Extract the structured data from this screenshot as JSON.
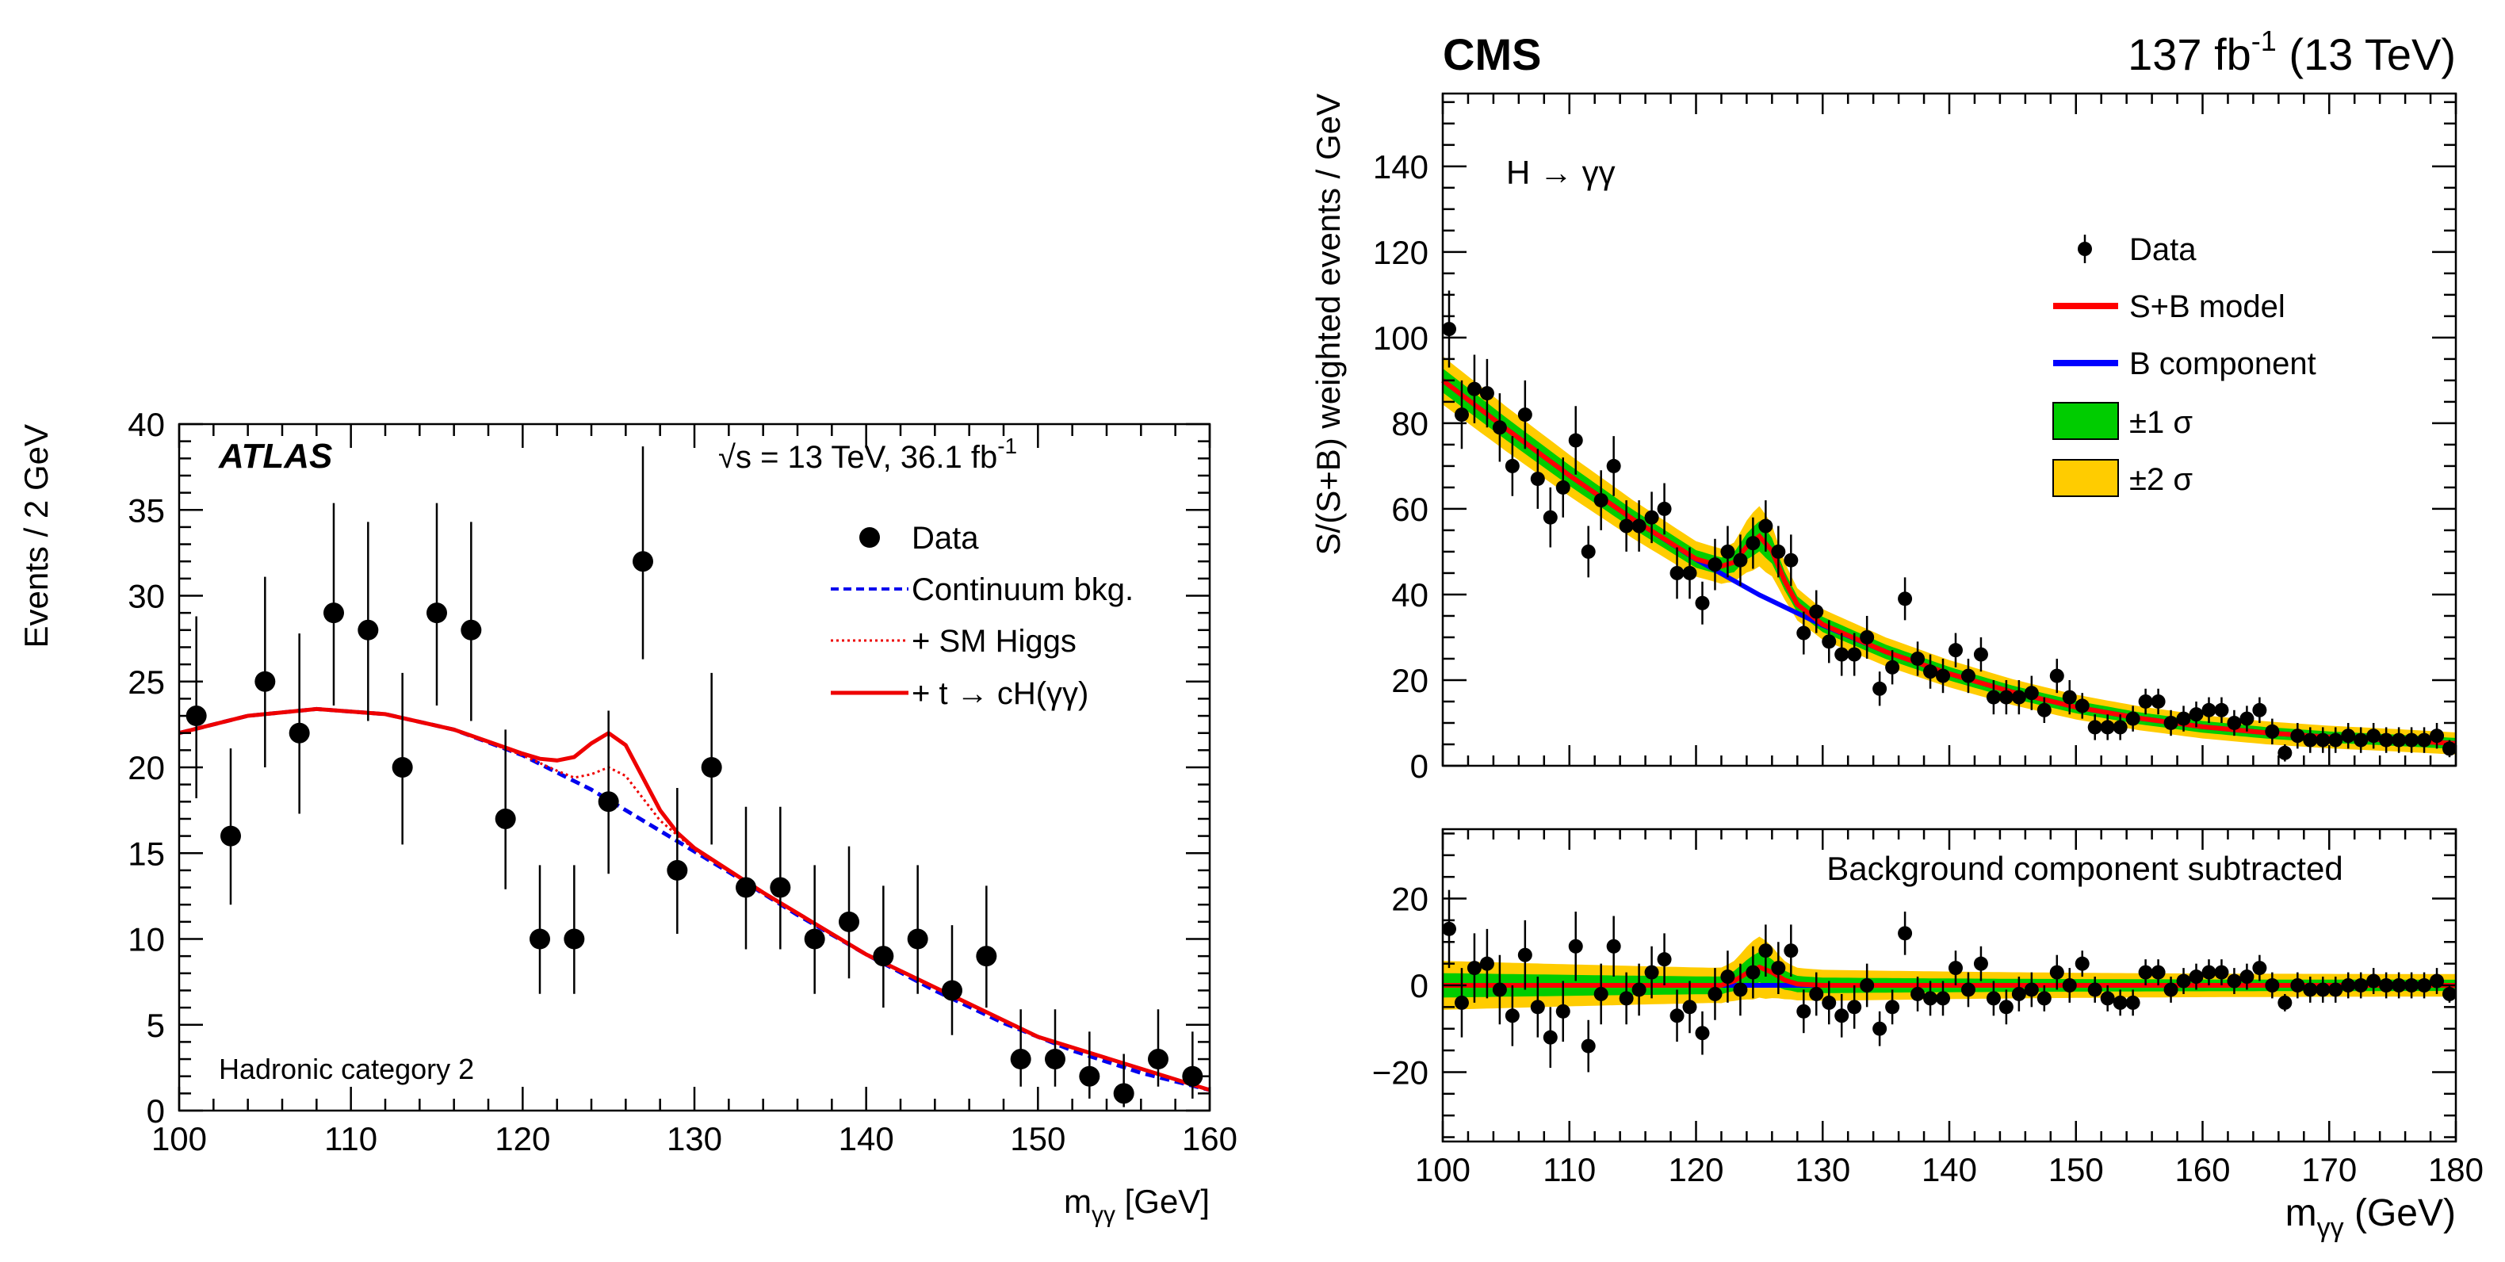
{
  "chart_data": [
    {
      "type": "scatter",
      "panel": "ATLAS",
      "experiment": "ATLAS",
      "energy_label_main": "s = 13 TeV, 36.1 fb",
      "energy_label_sup": "-1",
      "category_label": "Hadronic category 2",
      "ylabel": "Events / 2 GeV",
      "xlabel_main": "m",
      "xlabel_sub": "γγ",
      "xlabel_unit": " [GeV]",
      "xlim": [
        100,
        160
      ],
      "ylim": [
        0,
        40
      ],
      "xticks": [
        "100",
        "110",
        "120",
        "130",
        "140",
        "150",
        "160"
      ],
      "yticks": [
        "0",
        "5",
        "10",
        "15",
        "20",
        "25",
        "30",
        "35",
        "40"
      ],
      "legend": {
        "data": "Data",
        "continuum": "Continuum bkg.",
        "smhiggs": "+ SM Higgs",
        "signal": "+ t → cH(γγ)"
      },
      "colors": {
        "continuum": "#0000ee",
        "smhiggs": "#ee0000",
        "signal": "#ee0000",
        "data": "#000000"
      },
      "series_data": {
        "x": [
          101,
          103,
          105,
          107,
          109,
          111,
          113,
          115,
          117,
          119,
          121,
          123,
          125,
          127,
          129,
          131,
          133,
          135,
          137,
          139,
          141,
          143,
          145,
          147,
          149,
          151,
          153,
          155,
          157,
          159
        ],
        "y": [
          23,
          16,
          25,
          22,
          29,
          28,
          20,
          29,
          28,
          17,
          10,
          10,
          18,
          32,
          14,
          20,
          13,
          13,
          10,
          11,
          9,
          10,
          7,
          9,
          3,
          3,
          2,
          1,
          3,
          2
        ],
        "err_lo": [
          4.8,
          4.0,
          5.0,
          4.7,
          5.4,
          5.3,
          4.5,
          5.4,
          5.3,
          4.1,
          3.2,
          3.2,
          4.2,
          5.7,
          3.7,
          4.5,
          3.6,
          3.6,
          3.2,
          3.3,
          3.0,
          3.2,
          2.6,
          3.0,
          1.6,
          1.6,
          1.3,
          0.8,
          1.6,
          1.3
        ],
        "err_hi": [
          5.8,
          5.1,
          6.1,
          5.8,
          6.4,
          6.3,
          5.5,
          6.4,
          6.3,
          5.2,
          4.3,
          4.3,
          5.3,
          6.7,
          4.8,
          5.5,
          4.7,
          4.7,
          4.3,
          4.4,
          4.1,
          4.3,
          3.8,
          4.1,
          2.9,
          2.9,
          2.6,
          2.3,
          2.9,
          2.6
        ]
      },
      "curves": {
        "continuum": {
          "x": [
            100,
            104,
            108,
            112,
            116,
            120,
            124,
            128,
            132,
            136,
            140,
            144,
            148,
            152,
            156,
            160
          ],
          "y": [
            22.0,
            23.0,
            23.4,
            23.1,
            22.2,
            20.7,
            18.7,
            16.3,
            13.9,
            11.4,
            9.1,
            7.0,
            5.1,
            3.5,
            2.2,
            1.2
          ]
        },
        "smhiggs": {
          "x": [
            100,
            104,
            108,
            112,
            116,
            120,
            122,
            123,
            124,
            125,
            126,
            127,
            128,
            130,
            134,
            140,
            150,
            160
          ],
          "y": [
            22.0,
            23.0,
            23.4,
            23.1,
            22.2,
            20.7,
            19.8,
            19.4,
            19.6,
            20.0,
            19.5,
            18.2,
            16.9,
            15.2,
            12.7,
            9.1,
            4.3,
            1.2
          ]
        },
        "signal": {
          "x": [
            100,
            104,
            108,
            112,
            116,
            120,
            121,
            122,
            123,
            124,
            125,
            126,
            127,
            128,
            129,
            130,
            134,
            140,
            150,
            160
          ],
          "y": [
            22.0,
            23.0,
            23.4,
            23.1,
            22.2,
            20.8,
            20.5,
            20.4,
            20.6,
            21.4,
            22.0,
            21.3,
            19.4,
            17.5,
            16.2,
            15.3,
            12.7,
            9.1,
            4.3,
            1.2
          ]
        }
      }
    },
    {
      "type": "scatter",
      "panel": "CMS-top",
      "experiment": "CMS",
      "lumi_main": "137 fb",
      "lumi_sup": "-1",
      "lumi_tail": " (13 TeV)",
      "channel": "H → γγ",
      "ylabel": "S/(S+B) weighted events / GeV",
      "xlim": [
        100,
        180
      ],
      "ylim": [
        0,
        157
      ],
      "yticks": [
        "0",
        "20",
        "40",
        "60",
        "80",
        "100",
        "120",
        "140"
      ],
      "legend": {
        "data": "Data",
        "sb": "S+B model",
        "b": "B component",
        "s1": "±1 σ",
        "s2": "±2 σ"
      },
      "colors": {
        "sb": "#ff0000",
        "b": "#0000ff",
        "s1": "#00cc00",
        "s2": "#ffcc00"
      },
      "series_data": {
        "x": [
          100.5,
          101.5,
          102.5,
          103.5,
          104.5,
          105.5,
          106.5,
          107.5,
          108.5,
          109.5,
          110.5,
          111.5,
          112.5,
          113.5,
          114.5,
          115.5,
          116.5,
          117.5,
          118.5,
          119.5,
          120.5,
          121.5,
          122.5,
          123.5,
          124.5,
          125.5,
          126.5,
          127.5,
          128.5,
          129.5,
          130.5,
          131.5,
          132.5,
          133.5,
          134.5,
          135.5,
          136.5,
          137.5,
          138.5,
          139.5,
          140.5,
          141.5,
          142.5,
          143.5,
          144.5,
          145.5,
          146.5,
          147.5,
          148.5,
          149.5,
          150.5,
          151.5,
          152.5,
          153.5,
          154.5,
          155.5,
          156.5,
          157.5,
          158.5,
          159.5,
          160.5,
          161.5,
          162.5,
          163.5,
          164.5,
          165.5,
          166.5,
          167.5,
          168.5,
          169.5,
          170.5,
          171.5,
          172.5,
          173.5,
          174.5,
          175.5,
          176.5,
          177.5,
          178.5,
          179.5
        ],
        "y": [
          102,
          82,
          88,
          87,
          79,
          70,
          82,
          67,
          58,
          65,
          76,
          50,
          62,
          70,
          56,
          56,
          58,
          60,
          45,
          45,
          38,
          47,
          50,
          48,
          52,
          56,
          50,
          48,
          31,
          36,
          29,
          26,
          26,
          30,
          18,
          23,
          39,
          25,
          22,
          21,
          27,
          21,
          26,
          16,
          16,
          16,
          17,
          13,
          21,
          16,
          14,
          9,
          9,
          9,
          11,
          15,
          15,
          10,
          11,
          12,
          13,
          13,
          10,
          11,
          13,
          8,
          3,
          7,
          6,
          6,
          6,
          7,
          6,
          7,
          6,
          6,
          6,
          6,
          7,
          4
        ],
        "err": [
          9,
          8,
          8,
          8,
          8,
          7,
          8,
          7,
          7,
          7,
          8,
          6,
          7,
          7,
          6,
          6,
          6,
          6,
          6,
          6,
          5,
          6,
          6,
          6,
          6,
          6,
          6,
          6,
          5,
          5,
          5,
          5,
          5,
          5,
          4,
          4,
          5,
          4,
          4,
          4,
          4,
          4,
          4,
          4,
          4,
          4,
          4,
          3,
          4,
          4,
          3,
          3,
          3,
          3,
          3,
          3,
          3,
          3,
          3,
          3,
          3,
          3,
          3,
          3,
          3,
          3,
          2,
          3,
          3,
          3,
          3,
          3,
          3,
          3,
          3,
          3,
          3,
          3,
          3,
          2
        ]
      },
      "curves": {
        "b": {
          "x": [
            100,
            105,
            110,
            115,
            120,
            125,
            130,
            135,
            140,
            145,
            150,
            155,
            160,
            165,
            170,
            175,
            180
          ],
          "y": [
            90.0,
            78.7,
            67.8,
            57.6,
            48.2,
            39.9,
            32.8,
            26.6,
            21.5,
            17.2,
            13.7,
            11.1,
            9.1,
            7.7,
            6.7,
            6.0,
            5.2
          ]
        },
        "sb": {
          "x": [
            100,
            105,
            110,
            115,
            120,
            122,
            123,
            124,
            125,
            126,
            127,
            128,
            130,
            135,
            140,
            145,
            150,
            155,
            160,
            165,
            170,
            175,
            180
          ],
          "y": [
            90.0,
            78.7,
            67.8,
            57.6,
            48.3,
            46.6,
            47.5,
            51.2,
            53.6,
            50.2,
            43.2,
            37.7,
            33.0,
            26.6,
            21.5,
            17.2,
            13.7,
            11.1,
            9.1,
            7.7,
            6.7,
            6.0,
            5.2
          ]
        }
      }
    },
    {
      "type": "scatter",
      "panel": "CMS-bottom",
      "title": "Background component subtracted",
      "xlabel_main": "m",
      "xlabel_sub": "γγ",
      "xlabel_unit": " (GeV)",
      "xlim": [
        100,
        180
      ],
      "ylim": [
        -36,
        36
      ],
      "xticks": [
        "100",
        "110",
        "120",
        "130",
        "140",
        "150",
        "160",
        "170",
        "180"
      ],
      "yticks": [
        "−20",
        "0",
        "20"
      ],
      "series_data": {
        "x": [
          100.5,
          101.5,
          102.5,
          103.5,
          104.5,
          105.5,
          106.5,
          107.5,
          108.5,
          109.5,
          110.5,
          111.5,
          112.5,
          113.5,
          114.5,
          115.5,
          116.5,
          117.5,
          118.5,
          119.5,
          120.5,
          121.5,
          122.5,
          123.5,
          124.5,
          125.5,
          126.5,
          127.5,
          128.5,
          129.5,
          130.5,
          131.5,
          132.5,
          133.5,
          134.5,
          135.5,
          136.5,
          137.5,
          138.5,
          139.5,
          140.5,
          141.5,
          142.5,
          143.5,
          144.5,
          145.5,
          146.5,
          147.5,
          148.5,
          149.5,
          150.5,
          151.5,
          152.5,
          153.5,
          154.5,
          155.5,
          156.5,
          157.5,
          158.5,
          159.5,
          160.5,
          161.5,
          162.5,
          163.5,
          164.5,
          165.5,
          166.5,
          167.5,
          168.5,
          169.5,
          170.5,
          171.5,
          172.5,
          173.5,
          174.5,
          175.5,
          176.5,
          177.5,
          178.5,
          179.5
        ],
        "y": [
          13,
          -4,
          4,
          5,
          -1,
          -7,
          7,
          -5,
          -12,
          -6,
          9,
          -14,
          -2,
          9,
          -3,
          -1,
          3,
          6,
          -7,
          -5,
          -11,
          -2,
          2,
          -1,
          3,
          8,
          4,
          8,
          -6,
          -2,
          -4,
          -7,
          -5,
          0,
          -10,
          -5,
          12,
          -2,
          -3,
          -3,
          4,
          -1,
          5,
          -3,
          -5,
          -2,
          -1,
          -3,
          3,
          0,
          5,
          -1,
          -3,
          -4,
          -4,
          3,
          3,
          -1,
          1,
          2,
          3,
          3,
          1,
          2,
          4,
          0,
          -4,
          0,
          -1,
          -1,
          -1,
          0,
          0,
          1,
          0,
          0,
          0,
          0,
          1,
          -2
        ],
        "err": [
          9,
          8,
          8,
          8,
          8,
          7,
          8,
          7,
          7,
          7,
          8,
          6,
          7,
          7,
          6,
          6,
          6,
          6,
          6,
          6,
          5,
          6,
          6,
          6,
          6,
          6,
          6,
          6,
          5,
          5,
          5,
          5,
          5,
          5,
          4,
          4,
          5,
          4,
          4,
          4,
          4,
          4,
          4,
          4,
          4,
          4,
          4,
          3,
          4,
          4,
          3,
          3,
          3,
          3,
          3,
          3,
          3,
          3,
          3,
          3,
          3,
          3,
          3,
          3,
          3,
          3,
          2,
          3,
          3,
          3,
          3,
          3,
          3,
          3,
          3,
          3,
          3,
          3,
          3,
          2
        ]
      },
      "curves": {
        "sb": {
          "x": [
            100,
            120,
            122,
            123,
            124,
            125,
            126,
            127,
            128,
            130,
            180
          ],
          "y": [
            0,
            0,
            0,
            1.0,
            2.8,
            4.2,
            3.0,
            1.2,
            0.3,
            0,
            0
          ]
        }
      }
    }
  ]
}
